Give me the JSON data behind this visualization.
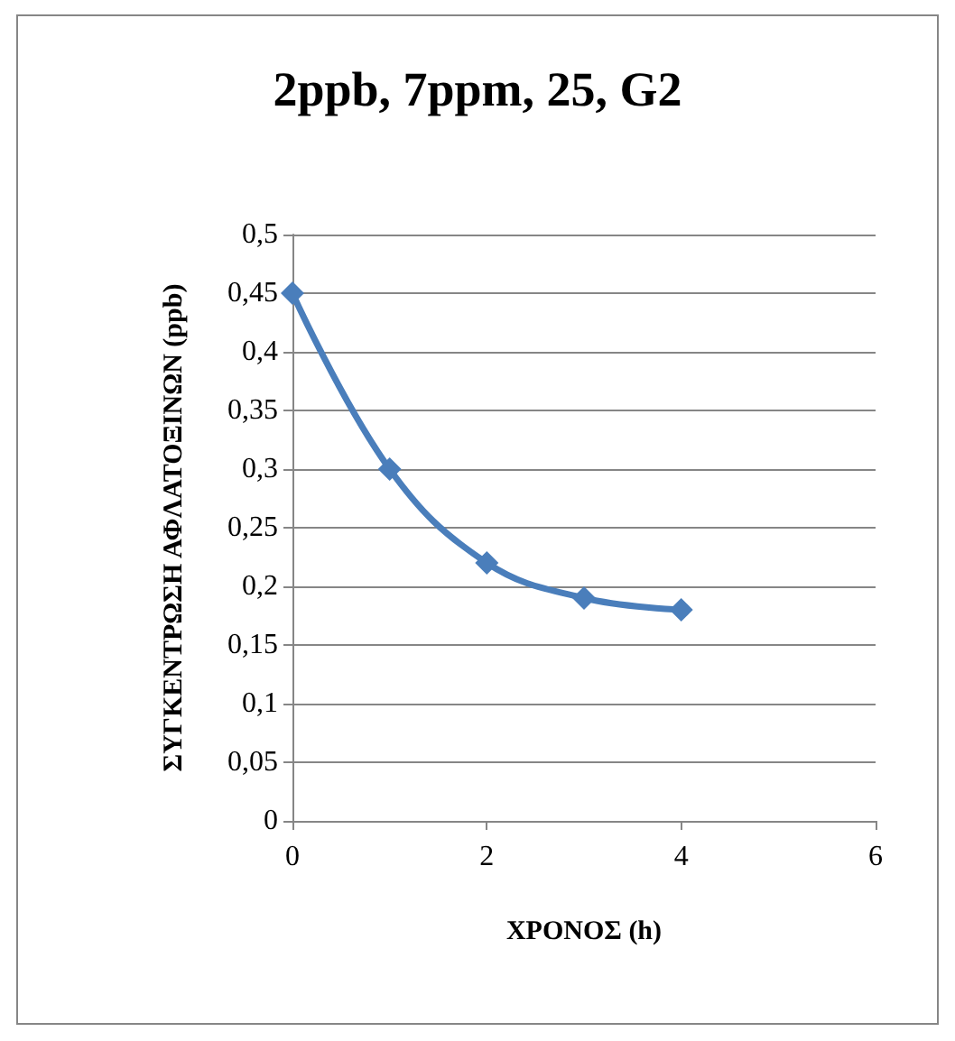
{
  "chart_data": {
    "type": "line",
    "title": "2ppb, 7ppm, 25, G2",
    "xlabel": "ΧΡΟΝΟΣ (h)",
    "ylabel": "ΣΥΓΚΕΝΤΡΩΣΗ ΑΦΛΑΤΟΞΙΝΩΝ (ppb)",
    "x": [
      0,
      1,
      2,
      3,
      4
    ],
    "series": [
      {
        "color": "#4a7ebb",
        "values": [
          0.45,
          0.3,
          0.22,
          0.19,
          0.18
        ]
      }
    ],
    "xlim": [
      0,
      6
    ],
    "xticks": [
      0,
      2,
      4,
      6
    ],
    "ylim": [
      0,
      0.5
    ],
    "yticks": [
      0,
      {
        "value": 0.05,
        "label": "0,05"
      },
      {
        "value": 0.1,
        "label": "0,1"
      },
      {
        "value": 0.15,
        "label": "0,15"
      },
      {
        "value": 0.2,
        "label": "0,2"
      },
      {
        "value": 0.25,
        "label": "0,25"
      },
      {
        "value": 0.3,
        "label": "0,3"
      },
      {
        "value": 0.35,
        "label": "0,35"
      },
      {
        "value": 0.4,
        "label": "0,4"
      },
      {
        "value": 0.45,
        "label": "0,45"
      },
      {
        "value": 0.5,
        "label": "0,5"
      }
    ],
    "grid": "y",
    "marker": "diamond",
    "line_style": "solid"
  }
}
